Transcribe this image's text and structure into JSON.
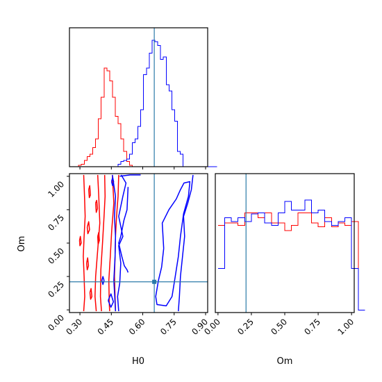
{
  "chart_data": {
    "type": "corner",
    "parameters": [
      "H0",
      "Om"
    ],
    "axes": {
      "H0": {
        "xlim": [
          0.25,
          0.91
        ],
        "ticks": [
          0.3,
          0.45,
          0.6,
          0.75,
          0.9
        ],
        "tick_labels": [
          "0.30",
          "0.45",
          "0.60",
          "0.75",
          "0.90"
        ],
        "label": "H0"
      },
      "Om": {
        "xlim": [
          -0.02,
          1.02
        ],
        "ticks": [
          0.0,
          0.25,
          0.5,
          0.75,
          1.0
        ],
        "tick_labels": [
          "0.00",
          "0.25",
          "0.50",
          "0.75",
          "1.00"
        ],
        "label": "Om"
      }
    },
    "truth": {
      "H0": 0.655,
      "Om": 0.21
    },
    "colors": {
      "red": "#ff0000",
      "blue": "#0000ff",
      "truth": "#2a7aa8",
      "axes": "#000000"
    },
    "hist_H0": {
      "bin_edges_start": 0.28,
      "bin_width": 0.0135,
      "ymax": 1.0,
      "series": [
        {
          "color": "#ff0000",
          "counts": [
            0,
            0.01,
            0.02,
            0.05,
            0.08,
            0.1,
            0.15,
            0.22,
            0.38,
            0.55,
            0.78,
            0.76,
            0.68,
            0.55,
            0.4,
            0.34,
            0.22,
            0.12,
            0.04,
            0.01,
            0,
            0,
            0,
            0,
            0,
            0,
            0,
            0,
            0,
            0,
            0,
            0,
            0,
            0,
            0,
            0,
            0,
            0,
            0,
            0,
            0,
            0,
            0,
            0,
            0,
            0,
            0,
            0,
            0,
            0
          ]
        },
        {
          "color": "#0000ff",
          "counts": [
            0,
            0,
            0,
            0,
            0,
            0,
            0,
            0,
            0,
            0,
            0,
            0,
            0,
            0,
            0,
            0.02,
            0.04,
            0.05,
            0.06,
            0.1,
            0.19,
            0.22,
            0.32,
            0.45,
            0.73,
            0.78,
            0.9,
            1.0,
            0.99,
            0.96,
            0.85,
            0.87,
            0.65,
            0.6,
            0.45,
            0.36,
            0.12,
            0.1,
            0,
            0,
            0,
            0,
            0,
            0,
            0,
            0,
            0,
            0,
            0,
            0
          ]
        }
      ]
    },
    "hist_Om": {
      "bin_edges_start": 0.0,
      "bin_width": 0.05,
      "ymax": 1.0,
      "series": [
        {
          "color": "#ff0000",
          "counts": [
            0.69,
            0.71,
            0.71,
            0.69,
            0.79,
            0.79,
            0.75,
            0.79,
            0.71,
            0.71,
            0.65,
            0.69,
            0.79,
            0.79,
            0.71,
            0.68,
            0.75,
            0.68,
            0.71,
            0.69,
            0.72,
            0.02
          ]
        },
        {
          "color": "#0000ff",
          "counts": [
            0.35,
            0.75,
            0.72,
            0.75,
            0.72,
            0.78,
            0.79,
            0.71,
            0.69,
            0.79,
            0.88,
            0.81,
            0.81,
            0.89,
            0.79,
            0.81,
            0.72,
            0.69,
            0.72,
            0.75,
            0.35,
            0.02
          ]
        }
      ]
    },
    "contours": [
      {
        "color": "#ff0000",
        "paths": [
          [
            [
              0.318,
              1.01
            ],
            [
              0.322,
              0.85
            ],
            [
              0.325,
              0.7
            ],
            [
              0.32,
              0.55
            ],
            [
              0.316,
              0.4
            ],
            [
              0.32,
              0.25
            ],
            [
              0.323,
              0.1
            ],
            [
              0.318,
              -0.01
            ]
          ],
          [
            [
              0.385,
              1.01
            ],
            [
              0.39,
              0.85
            ],
            [
              0.395,
              0.65
            ],
            [
              0.385,
              0.45
            ],
            [
              0.375,
              0.25
            ],
            [
              0.372,
              0.1
            ],
            [
              0.378,
              -0.01
            ]
          ],
          [
            [
              0.418,
              1.01
            ],
            [
              0.42,
              0.85
            ],
            [
              0.415,
              0.7
            ],
            [
              0.408,
              0.5
            ],
            [
              0.4,
              0.3
            ],
            [
              0.398,
              0.1
            ],
            [
              0.403,
              -0.01
            ]
          ],
          [
            [
              0.455,
              1.01
            ],
            [
              0.462,
              0.8
            ],
            [
              0.452,
              0.6
            ],
            [
              0.445,
              0.4
            ],
            [
              0.438,
              0.22
            ],
            [
              0.44,
              0.05
            ],
            [
              0.442,
              -0.01
            ]
          ],
          [
            [
              0.485,
              1.01
            ],
            [
              0.482,
              0.85
            ],
            [
              0.475,
              0.7
            ],
            [
              0.47,
              0.55
            ],
            [
              0.468,
              0.4
            ],
            [
              0.465,
              0.25
            ],
            [
              0.47,
              -0.01
            ]
          ],
          [
            [
              0.342,
              0.9
            ],
            [
              0.347,
              0.93
            ],
            [
              0.35,
              0.86
            ],
            [
              0.345,
              0.84
            ],
            [
              0.342,
              0.9
            ]
          ],
          [
            [
              0.375,
              0.8
            ],
            [
              0.38,
              0.82
            ],
            [
              0.384,
              0.76
            ],
            [
              0.378,
              0.73
            ],
            [
              0.375,
              0.8
            ]
          ],
          [
            [
              0.335,
              0.62
            ],
            [
              0.342,
              0.66
            ],
            [
              0.346,
              0.6
            ],
            [
              0.338,
              0.57
            ],
            [
              0.335,
              0.62
            ]
          ],
          [
            [
              0.385,
              0.55
            ],
            [
              0.39,
              0.58
            ],
            [
              0.393,
              0.52
            ],
            [
              0.387,
              0.49
            ],
            [
              0.385,
              0.55
            ]
          ],
          [
            [
              0.298,
              0.52
            ],
            [
              0.302,
              0.55
            ],
            [
              0.306,
              0.5
            ],
            [
              0.3,
              0.48
            ],
            [
              0.298,
              0.52
            ]
          ],
          [
            [
              0.332,
              0.35
            ],
            [
              0.337,
              0.39
            ],
            [
              0.341,
              0.33
            ],
            [
              0.335,
              0.3
            ],
            [
              0.332,
              0.35
            ]
          ],
          [
            [
              0.348,
              0.13
            ],
            [
              0.353,
              0.16
            ],
            [
              0.357,
              0.1
            ],
            [
              0.351,
              0.08
            ],
            [
              0.348,
              0.13
            ]
          ]
        ]
      },
      {
        "color": "#0000ff",
        "paths": [
          [
            [
              0.455,
              1.01
            ],
            [
              0.47,
              0.85
            ],
            [
              0.465,
              0.7
            ],
            [
              0.47,
              0.55
            ],
            [
              0.468,
              0.4
            ],
            [
              0.462,
              0.22
            ],
            [
              0.468,
              0.05
            ],
            [
              0.47,
              -0.01
            ]
          ],
          [
            [
              0.497,
              1.01
            ],
            [
              0.52,
              0.95
            ],
            [
              0.505,
              0.85
            ],
            [
              0.485,
              0.7
            ],
            [
              0.505,
              0.55
            ],
            [
              0.485,
              0.48
            ],
            [
              0.495,
              0.35
            ],
            [
              0.49,
              0.2
            ],
            [
              0.48,
              0.1
            ],
            [
              0.485,
              -0.01
            ]
          ],
          [
            [
              0.49,
              1.0
            ],
            [
              0.54,
              1.01
            ],
            [
              0.59,
              1.01
            ]
          ],
          [
            [
              0.53,
              0.92
            ],
            [
              0.525,
              0.75
            ],
            [
              0.51,
              0.67
            ],
            [
              0.495,
              0.55
            ],
            [
              0.485,
              0.5
            ],
            [
              0.5,
              0.4
            ],
            [
              0.512,
              0.33
            ],
            [
              0.525,
              0.3
            ],
            [
              0.53,
              0.28
            ]
          ],
          [
            [
              0.84,
              1.01
            ],
            [
              0.832,
              0.9
            ],
            [
              0.815,
              0.8
            ],
            [
              0.795,
              0.7
            ],
            [
              0.8,
              0.55
            ],
            [
              0.79,
              0.4
            ],
            [
              0.78,
              0.25
            ],
            [
              0.775,
              0.1
            ],
            [
              0.77,
              -0.01
            ]
          ],
          [
            [
              0.7,
              0.46
            ],
            [
              0.693,
              0.65
            ],
            [
              0.725,
              0.75
            ],
            [
              0.76,
              0.83
            ],
            [
              0.78,
              0.9
            ],
            [
              0.797,
              0.95
            ],
            [
              0.825,
              0.96
            ],
            [
              0.818,
              0.85
            ],
            [
              0.795,
              0.72
            ],
            [
              0.78,
              0.55
            ],
            [
              0.77,
              0.4
            ],
            [
              0.755,
              0.25
            ],
            [
              0.74,
              0.1
            ],
            [
              0.712,
              0.03
            ],
            [
              0.668,
              0.04
            ],
            [
              0.662,
              0.1
            ],
            [
              0.675,
              0.22
            ],
            [
              0.69,
              0.32
            ],
            [
              0.7,
              0.46
            ]
          ],
          [
            [
              0.405,
              0.22
            ],
            [
              0.41,
              0.25
            ],
            [
              0.415,
              0.22
            ],
            [
              0.41,
              0.19
            ],
            [
              0.405,
              0.22
            ]
          ],
          [
            [
              0.451,
              0.96
            ],
            [
              0.456,
              0.99
            ],
            [
              0.461,
              0.96
            ],
            [
              0.456,
              0.93
            ],
            [
              0.451,
              0.96
            ]
          ],
          [
            [
              0.435,
              0.07
            ],
            [
              0.448,
              0.12
            ],
            [
              0.46,
              0.06
            ],
            [
              0.448,
              0.02
            ],
            [
              0.435,
              0.07
            ]
          ]
        ]
      }
    ],
    "markers": [
      {
        "H0": 0.655,
        "Om": 0.21,
        "color": "#2a7aa8"
      }
    ]
  }
}
